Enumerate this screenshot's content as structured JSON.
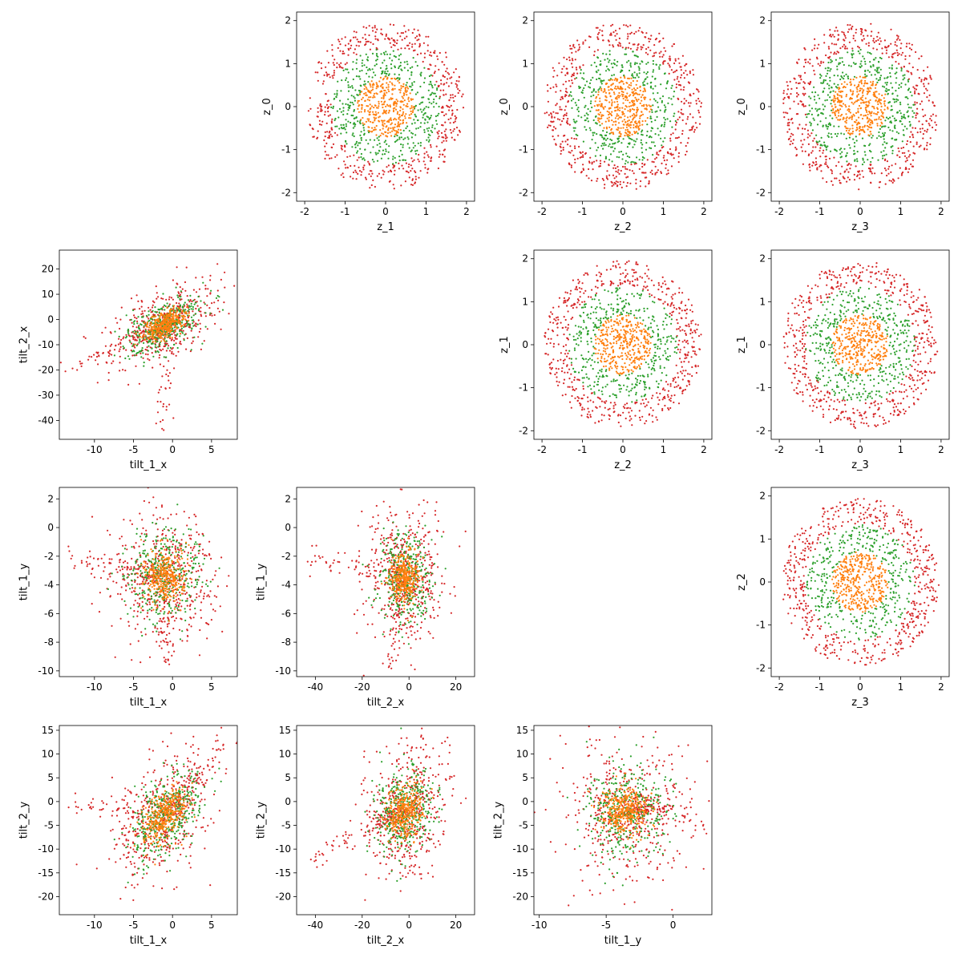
{
  "colors": {
    "outer": "#d62728",
    "middle": "#2ca02c",
    "inner": "#ff7f0e"
  },
  "chart_data": [
    {
      "type": "scatter",
      "cell": [
        0,
        1
      ],
      "xlabel": "z_1",
      "ylabel": "z_0",
      "xlim": [
        -2.2,
        2.2
      ],
      "ylim": [
        -2.2,
        2.2
      ],
      "xticks": [
        -2,
        -1,
        0,
        1,
        2
      ],
      "yticks": [
        -2,
        -1,
        0,
        1,
        2
      ],
      "dist": {
        "kind": "disk"
      },
      "points": 1300,
      "seed": 11
    },
    {
      "type": "scatter",
      "cell": [
        0,
        2
      ],
      "xlabel": "z_2",
      "ylabel": "z_0",
      "xlim": [
        -2.2,
        2.2
      ],
      "ylim": [
        -2.2,
        2.2
      ],
      "xticks": [
        -2,
        -1,
        0,
        1,
        2
      ],
      "yticks": [
        -2,
        -1,
        0,
        1,
        2
      ],
      "dist": {
        "kind": "disk"
      },
      "points": 1300,
      "seed": 12
    },
    {
      "type": "scatter",
      "cell": [
        0,
        3
      ],
      "xlabel": "z_3",
      "ylabel": "z_0",
      "xlim": [
        -2.2,
        2.2
      ],
      "ylim": [
        -2.2,
        2.2
      ],
      "xticks": [
        -2,
        -1,
        0,
        1,
        2
      ],
      "yticks": [
        -2,
        -1,
        0,
        1,
        2
      ],
      "dist": {
        "kind": "disk"
      },
      "points": 1300,
      "seed": 13
    },
    {
      "type": "scatter",
      "cell": [
        1,
        0
      ],
      "xlabel": "tilt_1_x",
      "ylabel": "tilt_2_x",
      "xlim": [
        -14.5,
        8.3
      ],
      "ylim": [
        -47.5,
        27.5
      ],
      "xticks": [
        -10,
        -5,
        0,
        5
      ],
      "yticks": [
        -40,
        -30,
        -20,
        -10,
        0,
        10,
        20
      ],
      "dist": {
        "kind": "blob",
        "cx": -1,
        "cy": -2,
        "sx": 3,
        "sy": 7,
        "rho": 0.55,
        "tailX": [
          -13,
          -1
        ],
        "tailY": [
          -20,
          -44
        ]
      },
      "points": 1300,
      "seed": 21
    },
    {
      "type": "scatter",
      "cell": [
        1,
        2
      ],
      "xlabel": "z_2",
      "ylabel": "z_1",
      "xlim": [
        -2.2,
        2.2
      ],
      "ylim": [
        -2.2,
        2.2
      ],
      "xticks": [
        -2,
        -1,
        0,
        1,
        2
      ],
      "yticks": [
        -2,
        -1,
        0,
        1,
        2
      ],
      "dist": {
        "kind": "disk"
      },
      "points": 1300,
      "seed": 22
    },
    {
      "type": "scatter",
      "cell": [
        1,
        3
      ],
      "xlabel": "z_3",
      "ylabel": "z_1",
      "xlim": [
        -2.2,
        2.2
      ],
      "ylim": [
        -2.2,
        2.2
      ],
      "xticks": [
        -2,
        -1,
        0,
        1,
        2
      ],
      "yticks": [
        -2,
        -1,
        0,
        1,
        2
      ],
      "dist": {
        "kind": "disk"
      },
      "points": 1300,
      "seed": 23
    },
    {
      "type": "scatter",
      "cell": [
        2,
        0
      ],
      "xlabel": "tilt_1_x",
      "ylabel": "tilt_1_y",
      "xlim": [
        -14.5,
        8.3
      ],
      "ylim": [
        -10.4,
        2.8
      ],
      "xticks": [
        -10,
        -5,
        0,
        5
      ],
      "yticks": [
        -10,
        -8,
        -6,
        -4,
        -2,
        0,
        2
      ],
      "dist": {
        "kind": "blob",
        "cx": -1,
        "cy": -3.5,
        "sx": 3,
        "sy": 2,
        "rho": 0.0,
        "tailX": [
          -13,
          -1
        ],
        "tailY": [
          -2,
          -9.5
        ]
      },
      "points": 1300,
      "seed": 31
    },
    {
      "type": "scatter",
      "cell": [
        2,
        1
      ],
      "xlabel": "tilt_2_x",
      "ylabel": "tilt_1_y",
      "xlim": [
        -48,
        28
      ],
      "ylim": [
        -10.4,
        2.8
      ],
      "xticks": [
        -40,
        -20,
        0,
        20
      ],
      "yticks": [
        -10,
        -8,
        -6,
        -4,
        -2,
        0,
        2
      ],
      "dist": {
        "kind": "blob",
        "cx": -2,
        "cy": -3.5,
        "sx": 7,
        "sy": 2,
        "rho": 0.0,
        "tailX": [
          -43,
          -8
        ],
        "tailY": [
          -2,
          -9.5
        ]
      },
      "points": 1300,
      "seed": 32
    },
    {
      "type": "scatter",
      "cell": [
        2,
        3
      ],
      "xlabel": "z_3",
      "ylabel": "z_2",
      "xlim": [
        -2.2,
        2.2
      ],
      "ylim": [
        -2.2,
        2.2
      ],
      "xticks": [
        -2,
        -1,
        0,
        1,
        2
      ],
      "yticks": [
        -2,
        -1,
        0,
        1,
        2
      ],
      "dist": {
        "kind": "disk"
      },
      "points": 1300,
      "seed": 33
    },
    {
      "type": "scatter",
      "cell": [
        3,
        0
      ],
      "xlabel": "tilt_1_x",
      "ylabel": "tilt_2_y",
      "xlim": [
        -14.5,
        8.3
      ],
      "ylim": [
        -23.8,
        16
      ],
      "xticks": [
        -10,
        -5,
        0,
        5
      ],
      "yticks": [
        -20,
        -15,
        -10,
        -5,
        0,
        5,
        10,
        15
      ],
      "dist": {
        "kind": "blob",
        "cx": -1,
        "cy": -3,
        "sx": 3,
        "sy": 6,
        "rho": 0.45,
        "tailX": [
          -13,
          7
        ],
        "tailY": [
          0,
          12
        ]
      },
      "points": 1300,
      "seed": 41
    },
    {
      "type": "scatter",
      "cell": [
        3,
        1
      ],
      "xlabel": "tilt_2_x",
      "ylabel": "tilt_2_y",
      "xlim": [
        -48,
        28
      ],
      "ylim": [
        -23.8,
        16
      ],
      "xticks": [
        -40,
        -20,
        0,
        20
      ],
      "yticks": [
        -20,
        -15,
        -10,
        -5,
        0,
        5,
        10,
        15
      ],
      "dist": {
        "kind": "blob",
        "cx": -2,
        "cy": -2,
        "sx": 8,
        "sy": 6,
        "rho": 0.2,
        "tailX": [
          -42,
          -10
        ],
        "tailY": [
          -12,
          -4
        ]
      },
      "points": 1300,
      "seed": 42
    },
    {
      "type": "scatter",
      "cell": [
        3,
        2
      ],
      "xlabel": "tilt_1_y",
      "ylabel": "tilt_2_y",
      "xlim": [
        -10.4,
        2.9
      ],
      "ylim": [
        -23.8,
        16
      ],
      "xticks": [
        -10,
        -5,
        0
      ],
      "yticks": [
        -20,
        -15,
        -10,
        -5,
        0,
        5,
        10,
        15
      ],
      "dist": {
        "kind": "blob",
        "cx": -3.5,
        "cy": -2,
        "sx": 2,
        "sy": 6,
        "rho": 0.0,
        "tailX": [
          -1,
          2
        ],
        "tailY": [
          -2,
          -3
        ]
      },
      "points": 1300,
      "seed": 43
    }
  ]
}
